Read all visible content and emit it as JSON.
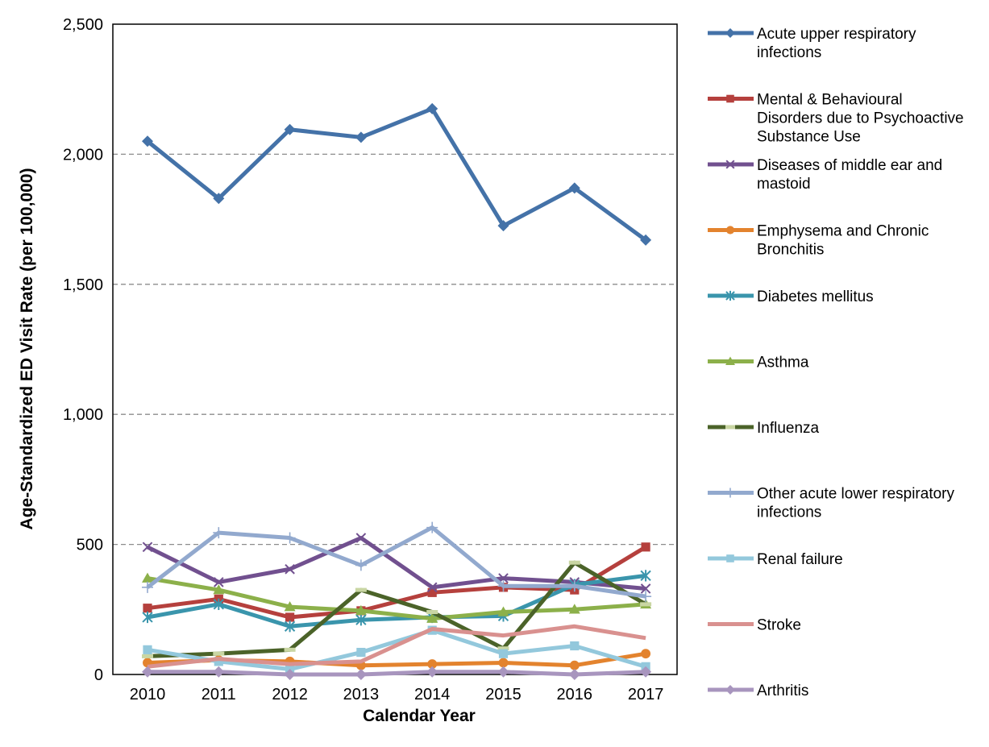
{
  "chart_data": {
    "type": "line",
    "title": "",
    "xlabel": "Calendar Year",
    "ylabel": "Age-Standardized ED Visit Rate (per 100,000)",
    "x": [
      "2010",
      "2011",
      "2012",
      "2013",
      "2014",
      "2015",
      "2016",
      "2017"
    ],
    "yticks": [
      "0",
      "500",
      "1,000",
      "1,500",
      "2,000",
      "2,500"
    ],
    "ylim": [
      0,
      2500
    ],
    "grid": "horizontal dashed",
    "legend_position": "right",
    "series": [
      {
        "name": "Acute upper respiratory infections",
        "color": "#4472A8",
        "marker": "diamond",
        "values": [
          2050,
          1830,
          2095,
          2065,
          2175,
          1725,
          1870,
          1670
        ]
      },
      {
        "name": "Mental & Behavioural Disorders due to Psychoactive Substance Use",
        "color": "#B5403D",
        "marker": "square",
        "values": [
          255,
          290,
          220,
          245,
          315,
          335,
          325,
          490
        ]
      },
      {
        "name": "Diseases of middle ear and mastoid",
        "color": "#71508F",
        "marker": "x",
        "values": [
          490,
          355,
          405,
          525,
          335,
          370,
          355,
          330
        ]
      },
      {
        "name": "Emphysema and Chronic Bronchitis",
        "color": "#E3832E",
        "marker": "circle",
        "values": [
          45,
          55,
          50,
          35,
          40,
          45,
          35,
          80
        ]
      },
      {
        "name": "Diabetes mellitus",
        "color": "#3A95AC",
        "marker": "star",
        "values": [
          220,
          270,
          185,
          210,
          220,
          225,
          345,
          380
        ]
      },
      {
        "name": "Asthma",
        "color": "#8CB04A",
        "marker": "triangle",
        "values": [
          370,
          325,
          260,
          245,
          215,
          240,
          250,
          270
        ]
      },
      {
        "name": "Influenza",
        "color": "#4B6329",
        "marker": "dash",
        "values": [
          70,
          80,
          95,
          325,
          240,
          100,
          430,
          270
        ]
      },
      {
        "name": "Other acute lower respiratory infections",
        "color": "#92A9CE",
        "marker": "plus",
        "values": [
          335,
          545,
          525,
          420,
          565,
          340,
          340,
          300
        ]
      },
      {
        "name": "Renal failure",
        "color": "#93C8DC",
        "marker": "square",
        "values": [
          95,
          50,
          20,
          85,
          170,
          80,
          110,
          30
        ]
      },
      {
        "name": "Stroke",
        "color": "#D9918F",
        "marker": "none",
        "values": [
          30,
          60,
          40,
          50,
          175,
          150,
          185,
          140
        ]
      },
      {
        "name": "Arthritis",
        "color": "#A895BE",
        "marker": "diamond",
        "values": [
          10,
          10,
          0,
          0,
          10,
          10,
          0,
          10
        ]
      }
    ]
  },
  "legend_lines": [
    [
      "Acute upper respiratory",
      "infections"
    ],
    [
      "Mental & Behavioural",
      "Disorders due to Psychoactive",
      "Substance Use"
    ],
    [
      "Diseases of middle ear and",
      "mastoid"
    ],
    [
      "Emphysema and Chronic",
      "Bronchitis"
    ],
    [
      "Diabetes mellitus"
    ],
    [
      "Asthma"
    ],
    [
      "Influenza"
    ],
    [
      "Other acute lower respiratory",
      "infections"
    ],
    [
      "Renal failure"
    ],
    [
      "Stroke"
    ],
    [
      "Arthritis"
    ]
  ]
}
